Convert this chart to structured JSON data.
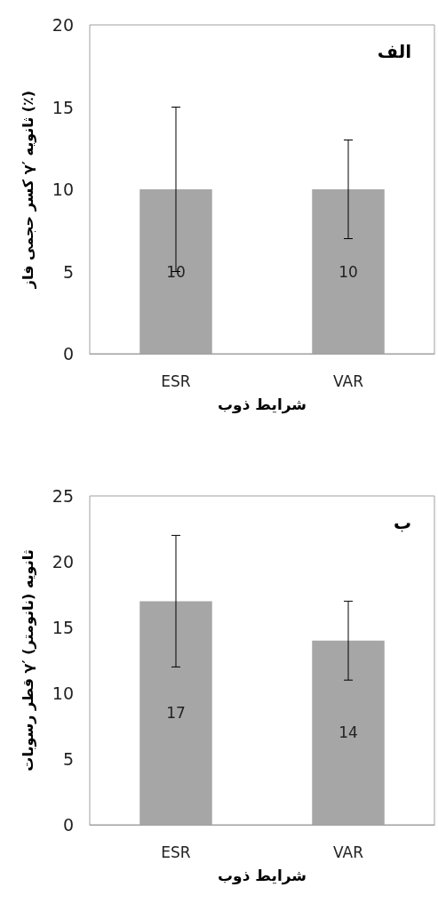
{
  "chart_data": [
    {
      "type": "bar",
      "categories": [
        "ESR",
        "VAR"
      ],
      "values": [
        10,
        10
      ],
      "errors": [
        5,
        3
      ],
      "color": "#a6a6a6",
      "xlabel": "شرایط ذوب",
      "ylabel": "کسر حجمی فاز γ′ ثانویه (٪)",
      "ylim": [
        0,
        20
      ],
      "yticks": [
        0,
        5,
        10,
        15,
        20
      ],
      "grid": false,
      "data_labels": true,
      "annotations": [
        "الف"
      ]
    },
    {
      "type": "bar",
      "categories": [
        "ESR",
        "VAR"
      ],
      "values": [
        17,
        14
      ],
      "errors": [
        5,
        3
      ],
      "color": "#a6a6a6",
      "xlabel": "شرایط ذوب",
      "ylabel": "قطر رسوبات γ′ ثانویه (نانومتر)",
      "ylim": [
        0,
        25
      ],
      "yticks": [
        0,
        5,
        10,
        15,
        20,
        25
      ],
      "grid": false,
      "data_labels": true,
      "annotations": [
        "ب"
      ]
    }
  ]
}
